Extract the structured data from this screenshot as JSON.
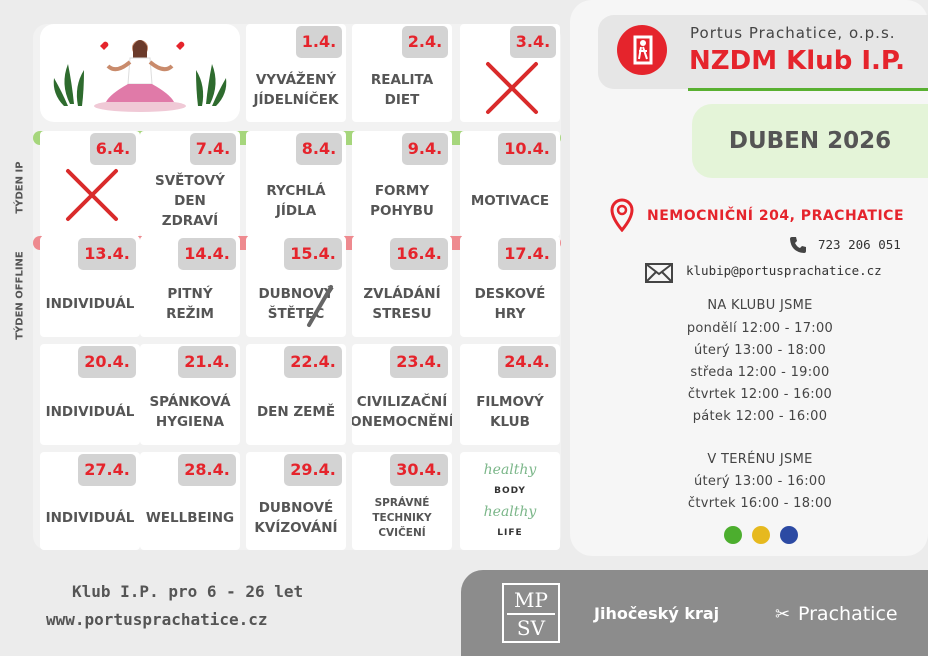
{
  "header": {
    "org": "Portus Prachatice, o.p.s.",
    "club": "NZDM Klub I.P.",
    "month": "DUBEN 2026"
  },
  "week_labels": {
    "ip": "TÝDEN IP",
    "offline": "TÝDEN OFFLINE"
  },
  "calendar": [
    {
      "date": "1.4.",
      "text": "VYVÁŽENÝ\nJÍDELNÍČEK"
    },
    {
      "date": "2.4.",
      "text": "REALITA\nDIET"
    },
    {
      "date": "3.4.",
      "text": ""
    },
    {
      "date": "6.4.",
      "text": ""
    },
    {
      "date": "7.4.",
      "text": "SVĚTOVÝ\nDEN\nZDRAVÍ"
    },
    {
      "date": "8.4.",
      "text": "RYCHLÁ\nJÍDLA"
    },
    {
      "date": "9.4.",
      "text": "FORMY\nPOHYBU"
    },
    {
      "date": "10.4.",
      "text": "MOTIVACE"
    },
    {
      "date": "13.4.",
      "text": "INDIVIDUÁL"
    },
    {
      "date": "14.4.",
      "text": "PITNÝ\nREŽIM"
    },
    {
      "date": "15.4.",
      "text": "DUBNOVÝ\nŠTĚTEC"
    },
    {
      "date": "16.4.",
      "text": "ZVLÁDÁNÍ\nSTRESU"
    },
    {
      "date": "17.4.",
      "text": "DESKOVÉ\nHRY"
    },
    {
      "date": "20.4.",
      "text": "INDIVIDUÁL"
    },
    {
      "date": "21.4.",
      "text": "SPÁNKOVÁ\nHYGIENA"
    },
    {
      "date": "22.4.",
      "text": "DEN ZEMĚ"
    },
    {
      "date": "23.4.",
      "text": "CIVILIZAČNÍ\nONEMOCNĚNÍ"
    },
    {
      "date": "24.4.",
      "text": "FILMOVÝ\nKLUB"
    },
    {
      "date": "27.4.",
      "text": "INDIVIDUÁL"
    },
    {
      "date": "28.4.",
      "text": "WELLBEING"
    },
    {
      "date": "29.4.",
      "text": "DUBNOVÉ\nKVÍZOVÁNÍ"
    },
    {
      "date": "30.4.",
      "text": "SPRÁVNÉ\nTECHNIKY\nCVIČENÍ"
    }
  ],
  "healthy_badge": {
    "line1": "healthy",
    "line2": "BODY",
    "line3": "healthy",
    "line4": "LIFE"
  },
  "contact": {
    "address": "NEMOCNIČNÍ 204, PRACHATICE",
    "phone": "723 206 051",
    "email": "klubip@portusprachatice.cz"
  },
  "hours_club": {
    "title": "NA KLUBU JSME",
    "days": [
      "pondělí 12:00 - 17:00",
      "úterý 13:00 - 18:00",
      "středa 12:00 - 19:00",
      "čtvrtek 12:00 - 16:00",
      "pátek 12:00 - 16:00"
    ]
  },
  "hours_field": {
    "title": "V TERÉNU JSME",
    "days": [
      "úterý 13:00 - 16:00",
      "čtvrtek 16:00 - 18:00"
    ]
  },
  "dots": [
    "#4cae2e",
    "#e6b91e",
    "#2c4aa3"
  ],
  "colors": {
    "accent_red": "#e5242c",
    "green": "#59b031",
    "strip_green": "#a6d67c",
    "strip_pink": "#ee8a8f"
  },
  "bottom_left": {
    "age": "Klub I.P. pro  6 - 26  let",
    "web": "www.portusprachatice.cz"
  },
  "sponsors": {
    "mpsv": [
      "MP",
      "SV"
    ],
    "region": "Jihočeský kraj",
    "town": "Prachatice"
  }
}
